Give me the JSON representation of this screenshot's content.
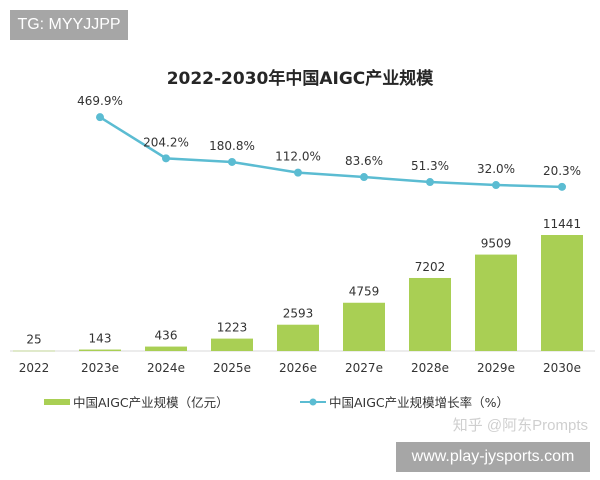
{
  "header_tag": "TG: MYYJJPP",
  "footer_tag": "www.play-jysports.com",
  "watermark": "知乎 @阿东Prompts",
  "colors": {
    "bar": "#a9cf54",
    "line": "#5bbcd2",
    "text": "#333333",
    "title": "#262626"
  },
  "chart_data": {
    "type": "bar+line",
    "title": "2022-2030年中国AIGC产业规模",
    "categories": [
      "2022",
      "2023e",
      "2024e",
      "2025e",
      "2026e",
      "2027e",
      "2028e",
      "2029e",
      "2030e"
    ],
    "series": [
      {
        "name": "中国AIGC产业规模（亿元）",
        "type": "bar",
        "values": [
          25,
          143,
          436,
          1223,
          2593,
          4759,
          7202,
          9509,
          11441
        ],
        "labels": [
          "25",
          "143",
          "436",
          "1223",
          "2593",
          "4759",
          "7202",
          "9509",
          "11441"
        ]
      },
      {
        "name": "中国AIGC产业规模增长率（%）",
        "type": "line",
        "values": [
          null,
          469.9,
          204.2,
          180.8,
          112.0,
          83.6,
          51.3,
          32.0,
          20.3
        ],
        "labels": [
          "",
          "469.9%",
          "204.2%",
          "180.8%",
          "112.0%",
          "83.6%",
          "51.3%",
          "32.0%",
          "20.3%"
        ]
      }
    ],
    "legend": "bottom",
    "grid": false
  }
}
